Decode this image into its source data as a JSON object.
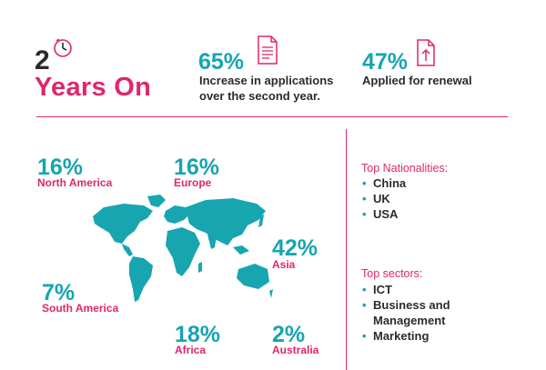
{
  "header": {
    "number": "2",
    "title": "Years On"
  },
  "stats": [
    {
      "value": "65%",
      "text_line1": "Increase in applications",
      "text_line2": "over the second year.",
      "icon": "document-icon"
    },
    {
      "value": "47%",
      "text": "Applied for renewal",
      "icon": "upload-document-icon"
    }
  ],
  "regions": [
    {
      "pct": "16%",
      "name": "North America"
    },
    {
      "pct": "16%",
      "name": "Europe"
    },
    {
      "pct": "42%",
      "name": "Asia"
    },
    {
      "pct": "7%",
      "name": "South America"
    },
    {
      "pct": "18%",
      "name": "Africa"
    },
    {
      "pct": "2%",
      "name": "Australia"
    }
  ],
  "nationalities": {
    "title": "Top Nationalities:",
    "items": [
      "China",
      "UK",
      "USA"
    ]
  },
  "sectors": {
    "title": "Top sectors:",
    "items": [
      "ICT",
      "Business and",
      "Management",
      "Marketing"
    ]
  },
  "colors": {
    "accent_teal": "#17a5b0",
    "accent_pink": "#e0266b",
    "text_dark": "#2b2b2b"
  }
}
